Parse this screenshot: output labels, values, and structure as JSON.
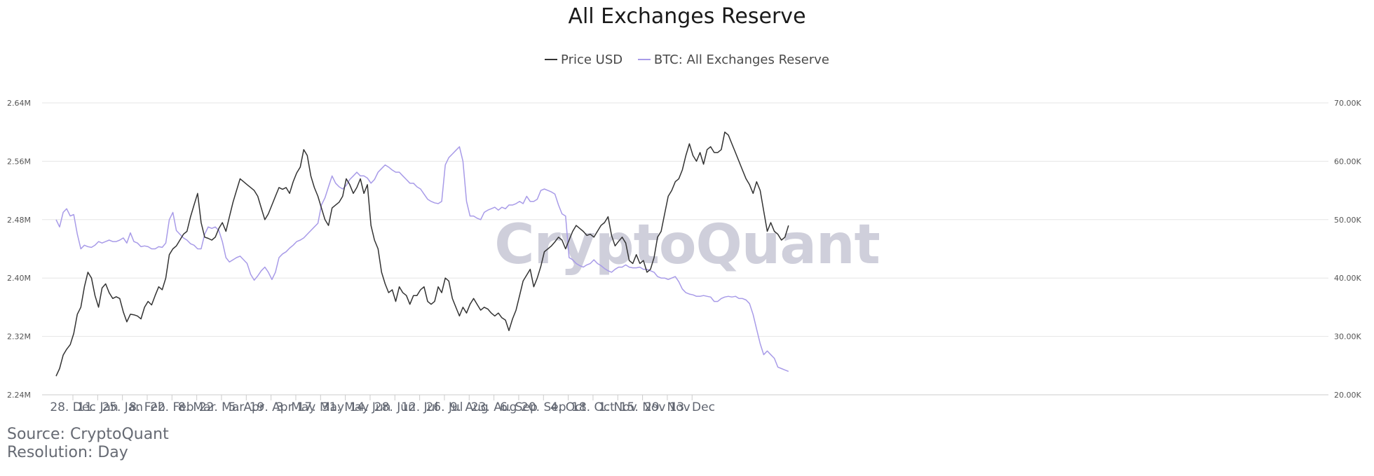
{
  "chart_data": {
    "type": "line",
    "title": "All Exchanges Reserve",
    "watermark": "CryptoQuant",
    "x_tick_labels": [
      "28. Dec",
      "11. Jan",
      "25. Jan",
      "8. Feb",
      "22. Feb",
      "8. Mar",
      "22. Mar",
      "5. Apr",
      "19. Apr",
      "3. May",
      "17. May",
      "31. May",
      "14. Jun",
      "28. Jun",
      "12. Jul",
      "26. Jul",
      "9. Aug",
      "23. Aug",
      "6. Sep",
      "20. Sep",
      "4. Oct",
      "18. Oct",
      "1. Nov",
      "15. Nov",
      "29. Nov",
      "13. Dec"
    ],
    "left_axis": {
      "ticks": [
        "2.24M",
        "2.32M",
        "2.40M",
        "2.48M",
        "2.56M",
        "2.64M"
      ],
      "range": [
        2240000,
        2640000
      ]
    },
    "right_axis": {
      "ticks": [
        "20.00K",
        "30.00K",
        "40.00K",
        "50.00K",
        "60.00K",
        "70.00K"
      ],
      "range": [
        20000,
        70000
      ]
    },
    "grid": true,
    "legend_position": "top-center",
    "sampling": "points every 2 days starting at the first data day",
    "series": [
      {
        "name": "Price USD",
        "axis": "right",
        "color": "#333333",
        "values": [
          23200,
          24500,
          26800,
          27800,
          28600,
          30500,
          33800,
          35000,
          38500,
          41000,
          40000,
          37000,
          35000,
          38300,
          39000,
          37500,
          36500,
          36800,
          36500,
          34200,
          32500,
          33800,
          33700,
          33500,
          33000,
          35000,
          36000,
          35400,
          37000,
          38500,
          38000,
          40000,
          44000,
          45000,
          45500,
          46500,
          47500,
          48000,
          50500,
          52500,
          54500,
          49500,
          47000,
          46800,
          46500,
          47000,
          48500,
          49500,
          48000,
          50500,
          53000,
          55000,
          57000,
          56500,
          56000,
          55500,
          55000,
          54000,
          52000,
          50000,
          51000,
          52500,
          54000,
          55500,
          55200,
          55500,
          54500,
          56500,
          58000,
          59000,
          62000,
          61000,
          57500,
          55500,
          54000,
          52000,
          50000,
          49000,
          52000,
          52500,
          53000,
          54000,
          57000,
          56000,
          54500,
          55500,
          57000,
          54500,
          56000,
          49000,
          46500,
          45000,
          41000,
          39000,
          37500,
          38000,
          36000,
          38500,
          37500,
          37000,
          35500,
          37000,
          37000,
          38000,
          38500,
          36000,
          35500,
          36000,
          38500,
          37500,
          40000,
          39500,
          36500,
          35000,
          33500,
          35000,
          34000,
          35500,
          36500,
          35500,
          34500,
          35000,
          34700,
          34000,
          33500,
          34000,
          33200,
          32800,
          31000,
          33000,
          34500,
          37000,
          39500,
          40500,
          41500,
          38500,
          40000,
          42000,
          44500,
          45000,
          45500,
          46200,
          47000,
          46500,
          45000,
          46500,
          48000,
          49000,
          48500,
          48000,
          47300,
          47500,
          47000,
          48000,
          49000,
          49500,
          50500,
          47300,
          45500,
          46300,
          47000,
          46000,
          43000,
          42500,
          44000,
          42500,
          43000,
          41000,
          41500,
          43500,
          47000,
          48000,
          51000,
          54000,
          55000,
          56500,
          57000,
          58500,
          61000,
          63000,
          61000,
          60000,
          61500,
          59500,
          62000,
          62500,
          61500,
          61500,
          62000,
          65000,
          64500,
          63000,
          61500,
          60000,
          58500,
          57000,
          56000,
          54500,
          56500,
          55000,
          51500,
          48000,
          49500,
          48000,
          47500,
          46500,
          47000,
          49000
        ]
      },
      {
        "name": "BTC: All Exchanges Reserve",
        "axis": "left",
        "color": "#a89be8",
        "values": [
          2480000,
          2470000,
          2490000,
          2495000,
          2485000,
          2487000,
          2460000,
          2440000,
          2445000,
          2443000,
          2442000,
          2445000,
          2450000,
          2448000,
          2450000,
          2452000,
          2450000,
          2450000,
          2452000,
          2455000,
          2448000,
          2462000,
          2450000,
          2448000,
          2443000,
          2444000,
          2443000,
          2440000,
          2440000,
          2443000,
          2442000,
          2448000,
          2480000,
          2490000,
          2465000,
          2460000,
          2455000,
          2452000,
          2447000,
          2445000,
          2440000,
          2440000,
          2460000,
          2470000,
          2468000,
          2470000,
          2465000,
          2450000,
          2428000,
          2422000,
          2425000,
          2428000,
          2430000,
          2425000,
          2420000,
          2405000,
          2397000,
          2403000,
          2410000,
          2415000,
          2408000,
          2398000,
          2408000,
          2428000,
          2433000,
          2436000,
          2441000,
          2445000,
          2450000,
          2452000,
          2455000,
          2460000,
          2465000,
          2470000,
          2475000,
          2500000,
          2510000,
          2525000,
          2540000,
          2530000,
          2525000,
          2522000,
          2527000,
          2535000,
          2540000,
          2545000,
          2540000,
          2540000,
          2537000,
          2530000,
          2535000,
          2545000,
          2550000,
          2555000,
          2552000,
          2548000,
          2545000,
          2545000,
          2540000,
          2535000,
          2530000,
          2530000,
          2525000,
          2522000,
          2515000,
          2508000,
          2505000,
          2503000,
          2502000,
          2505000,
          2555000,
          2565000,
          2570000,
          2575000,
          2580000,
          2560000,
          2505000,
          2485000,
          2485000,
          2482000,
          2480000,
          2490000,
          2493000,
          2495000,
          2497000,
          2493000,
          2497000,
          2495000,
          2500000,
          2500000,
          2502000,
          2505000,
          2502000,
          2512000,
          2505000,
          2505000,
          2508000,
          2520000,
          2522000,
          2520000,
          2518000,
          2515000,
          2500000,
          2488000,
          2485000,
          2428000,
          2425000,
          2420000,
          2417000,
          2415000,
          2418000,
          2420000,
          2425000,
          2420000,
          2417000,
          2413000,
          2410000,
          2408000,
          2412000,
          2415000,
          2415000,
          2418000,
          2415000,
          2414000,
          2414000,
          2415000,
          2412000,
          2412000,
          2410000,
          2408000,
          2402000,
          2400000,
          2400000,
          2398000,
          2400000,
          2402000,
          2395000,
          2385000,
          2380000,
          2378000,
          2377000,
          2375000,
          2375000,
          2376000,
          2375000,
          2374000,
          2368000,
          2368000,
          2372000,
          2374000,
          2375000,
          2374000,
          2375000,
          2372000,
          2372000,
          2370000,
          2365000,
          2350000,
          2330000,
          2310000,
          2295000,
          2300000,
          2295000,
          2290000,
          2278000,
          2276000,
          2274000,
          2272000
        ]
      }
    ]
  },
  "footer": {
    "source": "Source: CryptoQuant",
    "resolution": "Resolution: Day"
  }
}
